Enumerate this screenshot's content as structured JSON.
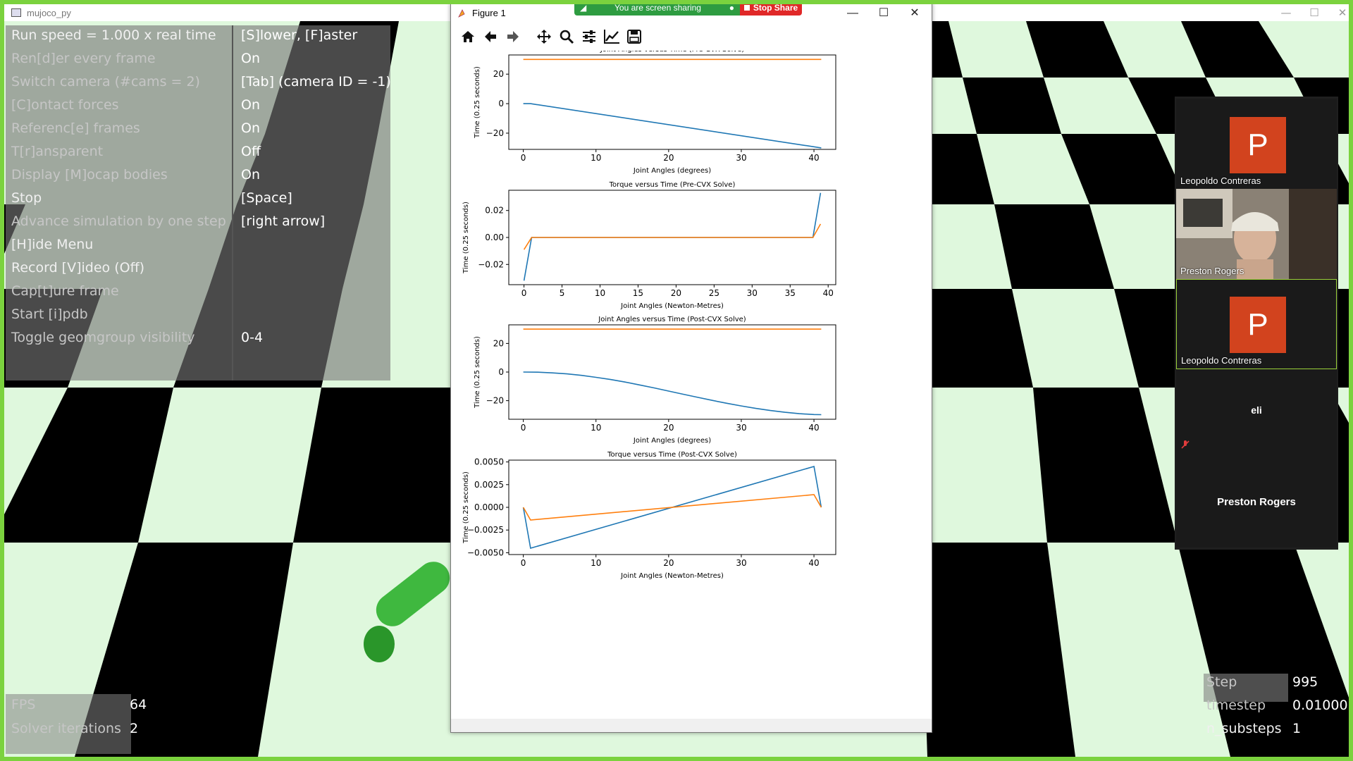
{
  "main_window": {
    "title": "mujoco_py",
    "controls": {
      "minimize": "—",
      "maximize": "☐",
      "close": "✕"
    }
  },
  "menu": [
    {
      "key": "Run speed = 1.000 x real time",
      "value": "[S]lower, [F]aster"
    },
    {
      "key": "Ren[d]er every frame",
      "value": "On"
    },
    {
      "key": "Switch camera (#cams = 2)",
      "value": "[Tab] (camera ID = -1)"
    },
    {
      "key": "[C]ontact forces",
      "value": "On"
    },
    {
      "key": "Referenc[e] frames",
      "value": "On"
    },
    {
      "key": "T[r]ansparent",
      "value": "Off"
    },
    {
      "key": "Display [M]ocap bodies",
      "value": "On"
    },
    {
      "key": "Stop",
      "value": "[Space]"
    },
    {
      "key": "Advance simulation by one step",
      "value": "[right arrow]"
    },
    {
      "key": "[H]ide Menu",
      "value": ""
    },
    {
      "key": "Record [V]ideo (Off)",
      "value": ""
    },
    {
      "key": "Cap[t]ure frame",
      "value": ""
    },
    {
      "key": "Start [i]pdb",
      "value": ""
    },
    {
      "key": "Toggle geomgroup visibility",
      "value": "0-4"
    }
  ],
  "bottom_left": [
    {
      "key": "FPS",
      "value": "64"
    },
    {
      "key": "Solver iterations",
      "value": "2"
    }
  ],
  "bottom_right": [
    {
      "key": "Step",
      "value": "995"
    },
    {
      "key": "timestep",
      "value": "0.01000"
    },
    {
      "key": "n_substeps",
      "value": "1"
    }
  ],
  "figure_window": {
    "title": "Figure 1",
    "controls": {
      "minimize": "—",
      "maximize": "☐",
      "close": "✕"
    },
    "toolbar": [
      "home-icon",
      "back-icon",
      "forward-icon",
      "pan-icon",
      "zoom-icon",
      "configure-subplots-icon",
      "edit-axis-icon",
      "save-icon"
    ]
  },
  "share_bar": {
    "status": "You are screen sharing",
    "stop_label": "Stop Share"
  },
  "participants": [
    {
      "name": "Leopoldo Contreras",
      "avatar_letter": "P",
      "kind": "avatar"
    },
    {
      "name": "Preston Rogers",
      "kind": "video"
    },
    {
      "name": "Leopoldo Contreras",
      "avatar_letter": "P",
      "kind": "avatar",
      "active": true
    },
    {
      "name": "eli",
      "kind": "name-only",
      "muted": true
    },
    {
      "name": "Preston Rogers",
      "kind": "name-only"
    }
  ],
  "colors": {
    "series1": "#1f77b4",
    "series2": "#ff7f0e",
    "share_green": "#2e9c41",
    "stop_red": "#e02828",
    "avatar_orange": "#d2431e",
    "checker_light": "#dff8dd",
    "checker_dark": "#000000"
  },
  "chart_data": [
    {
      "type": "line",
      "title": "Joint Angles versus Time (Pre-CVX Solve)",
      "xlabel": "Joint Angles (degrees)",
      "ylabel": "Time (0.25 seconds)",
      "xlim": [
        -2,
        43
      ],
      "ylim": [
        -31,
        33
      ],
      "xticks": [
        0,
        10,
        20,
        30,
        40
      ],
      "yticks": [
        20,
        0,
        -20
      ],
      "ytick_labels": [
        "20",
        "0",
        "−20"
      ],
      "series": [
        {
          "x": [
            0,
            1,
            41
          ],
          "y": [
            0,
            0,
            -30
          ]
        },
        {
          "x": [
            0,
            41
          ],
          "y": [
            30,
            30
          ]
        }
      ]
    },
    {
      "type": "line",
      "title": "Torque versus Time (Pre-CVX Solve)",
      "xlabel": "Joint Angles (Newton-Metres)",
      "ylabel": "Time (0.25 seconds)",
      "xlim": [
        -2,
        41
      ],
      "ylim": [
        -0.035,
        0.035
      ],
      "xticks": [
        0,
        5,
        10,
        15,
        20,
        25,
        30,
        35,
        40
      ],
      "yticks": [
        0.02,
        0.0,
        -0.02
      ],
      "ytick_labels": [
        "0.02",
        "0.00",
        "−0.02"
      ],
      "series": [
        {
          "x": [
            0,
            1,
            38,
            39
          ],
          "y": [
            -0.032,
            0.0,
            0.0,
            0.033
          ]
        },
        {
          "x": [
            0,
            1,
            38,
            39
          ],
          "y": [
            -0.009,
            0.0,
            0.0,
            0.01
          ]
        }
      ]
    },
    {
      "type": "line",
      "title": "Joint Angles versus Time (Post-CVX Solve)",
      "xlabel": "Joint Angles (degrees)",
      "ylabel": "Time (0.25 seconds)",
      "xlim": [
        -2,
        43
      ],
      "ylim": [
        -33,
        33
      ],
      "xticks": [
        0,
        10,
        20,
        30,
        40
      ],
      "yticks": [
        20,
        0,
        -20
      ],
      "ytick_labels": [
        "20",
        "0",
        "−20"
      ],
      "series": [
        {
          "x": [
            0,
            2,
            4,
            6,
            8,
            10,
            12,
            14,
            16,
            18,
            20,
            22,
            24,
            26,
            28,
            30,
            32,
            34,
            36,
            38,
            40,
            41
          ],
          "y": [
            0,
            -0.1,
            -0.6,
            -1.3,
            -2.3,
            -3.7,
            -5.2,
            -7.0,
            -9.0,
            -11.1,
            -13.3,
            -15.5,
            -17.7,
            -19.8,
            -21.8,
            -23.7,
            -25.4,
            -26.9,
            -28.1,
            -29.1,
            -29.7,
            -29.8
          ]
        },
        {
          "x": [
            0,
            41
          ],
          "y": [
            30,
            30
          ]
        }
      ]
    },
    {
      "type": "line",
      "title": "Torque versus Time (Post-CVX Solve)",
      "xlabel": "Joint Angles (Newton-Metres)",
      "ylabel": "Time (0.25 seconds)",
      "xlim": [
        -2,
        43
      ],
      "ylim": [
        -0.0052,
        0.0052
      ],
      "xticks": [
        0,
        10,
        20,
        30,
        40
      ],
      "yticks": [
        0.005,
        0.0025,
        0.0,
        -0.0025,
        -0.005
      ],
      "ytick_labels": [
        "0.0050",
        "0.0025",
        "0.0000",
        "−0.0025",
        "−0.0050"
      ],
      "series": [
        {
          "x": [
            0,
            1,
            40,
            41
          ],
          "y": [
            0.0,
            -0.0045,
            0.0045,
            0.0
          ]
        },
        {
          "x": [
            0,
            1,
            40,
            41
          ],
          "y": [
            0.0,
            -0.0014,
            0.0014,
            0.0
          ]
        }
      ]
    }
  ]
}
